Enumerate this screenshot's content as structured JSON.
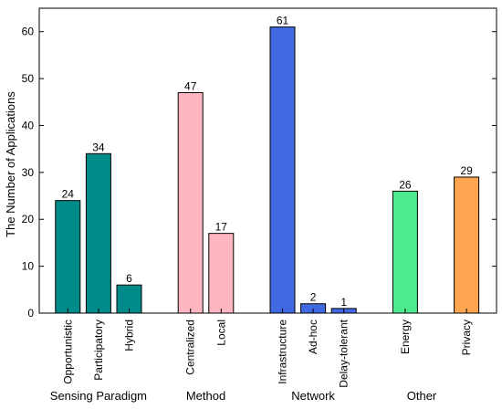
{
  "chart_data": {
    "type": "bar",
    "ylabel": "The Number of Applications",
    "ylim": [
      0,
      65
    ],
    "yticks": [
      0,
      10,
      20,
      30,
      40,
      50,
      60
    ],
    "grid": false,
    "groups": [
      {
        "name": "Sensing Paradigm",
        "color": "#008b8b",
        "bars": [
          {
            "label": "Opportunistic",
            "value": 24
          },
          {
            "label": "Participatory",
            "value": 34
          },
          {
            "label": "Hybrid",
            "value": 6
          }
        ]
      },
      {
        "name": "Method",
        "color": "#ffb6c1",
        "bars": [
          {
            "label": "Centralized",
            "value": 47
          },
          {
            "label": "Local",
            "value": 17
          }
        ]
      },
      {
        "name": "Network",
        "color": "#4169e1",
        "bars": [
          {
            "label": "Infrastructure",
            "value": 61
          },
          {
            "label": "Ad-hoc",
            "value": 2
          },
          {
            "label": "Delay-tolerant",
            "value": 1
          }
        ]
      },
      {
        "name": "Other",
        "color": null,
        "bars": [
          {
            "label": "Energy",
            "value": 26,
            "color": "#4deb8f"
          },
          {
            "label": "Privacy",
            "value": 29,
            "color": "#ffa54f"
          }
        ]
      }
    ]
  }
}
